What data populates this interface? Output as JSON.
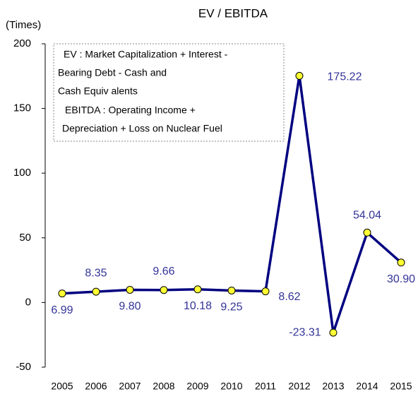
{
  "chart_data": {
    "type": "line",
    "title": "EV / EBITDA",
    "y_axis_label": "(Times)",
    "annotation": [
      "EV : Market Capitalization + Interest -",
      "Bearing Debt - Cash and",
      "Cash Equiv alents",
      "EBITDA : Operating Income +",
      "Depreciation + Loss on Nuclear  Fuel"
    ],
    "categories": [
      "2005",
      "2006",
      "2007",
      "2008",
      "2009",
      "2010",
      "2011",
      "2012",
      "2013",
      "2014",
      "2015"
    ],
    "series": [
      {
        "name": "EV / EBITDA",
        "color": "#000080",
        "marker_color": "#ffff33",
        "values": [
          6.99,
          8.35,
          9.8,
          9.66,
          10.18,
          9.25,
          8.62,
          175.22,
          -23.31,
          54.04,
          30.9
        ],
        "value_labels": [
          "6.99",
          "8.35",
          "9.80",
          "9.66",
          "10.18",
          "9.25",
          "8.62",
          "175.22",
          "-23.31",
          "54.04",
          "30.90"
        ]
      }
    ],
    "ylim": [
      -50,
      200
    ],
    "yticks": [
      -50,
      0,
      50,
      100,
      150,
      200
    ],
    "grid": false
  }
}
